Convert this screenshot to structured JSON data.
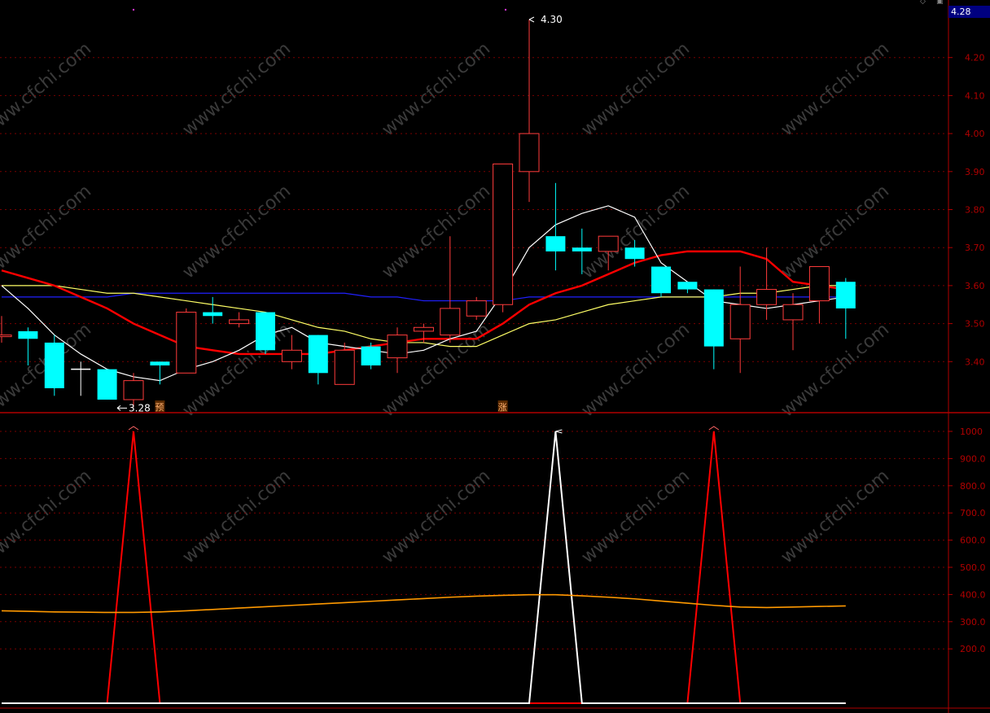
{
  "current_price_tag": "4.28",
  "colors": {
    "background": "#000000",
    "up": "#ff3b3b",
    "down": "#00ffff",
    "grid": "#7a0000",
    "axis": "#b00000",
    "ma_short": "#ffffff",
    "ma_mid": "#ff0000",
    "ma_long": "#ffff66",
    "ma_longest": "#2020ff",
    "indicator_avg": "#ff9900",
    "watermark": "#3a3a3a"
  },
  "watermark_text": "www.cfchi.com",
  "chart_data": [
    {
      "type": "candlestick",
      "panel": "price",
      "ylim": [
        3.27,
        4.33
      ],
      "y_ticks": [
        "4.20",
        "4.10",
        "4.00",
        "3.90",
        "3.80",
        "3.70",
        "3.60",
        "3.50",
        "3.40"
      ],
      "candles": [
        {
          "open": 3.47,
          "close": 3.47,
          "high": 3.52,
          "low": 3.45,
          "dir": "up"
        },
        {
          "open": 3.48,
          "close": 3.46,
          "high": 3.49,
          "low": 3.39,
          "dir": "down"
        },
        {
          "open": 3.45,
          "close": 3.33,
          "high": 3.47,
          "low": 3.31,
          "dir": "down"
        },
        {
          "open": 3.38,
          "close": 3.38,
          "high": 3.4,
          "low": 3.31,
          "dir": "doji"
        },
        {
          "open": 3.38,
          "close": 3.3,
          "high": 3.38,
          "low": 3.3,
          "dir": "down"
        },
        {
          "open": 3.3,
          "close": 3.35,
          "high": 3.37,
          "low": 3.28,
          "dir": "up"
        },
        {
          "open": 3.4,
          "close": 3.39,
          "high": 3.4,
          "low": 3.34,
          "dir": "down"
        },
        {
          "open": 3.37,
          "close": 3.53,
          "high": 3.54,
          "low": 3.37,
          "dir": "up"
        },
        {
          "open": 3.53,
          "close": 3.52,
          "high": 3.57,
          "low": 3.5,
          "dir": "down"
        },
        {
          "open": 3.5,
          "close": 3.51,
          "high": 3.53,
          "low": 3.49,
          "dir": "up"
        },
        {
          "open": 3.53,
          "close": 3.43,
          "high": 3.53,
          "low": 3.42,
          "dir": "down"
        },
        {
          "open": 3.4,
          "close": 3.43,
          "high": 3.47,
          "low": 3.38,
          "dir": "up"
        },
        {
          "open": 3.47,
          "close": 3.37,
          "high": 3.47,
          "low": 3.34,
          "dir": "down"
        },
        {
          "open": 3.34,
          "close": 3.43,
          "high": 3.45,
          "low": 3.34,
          "dir": "up"
        },
        {
          "open": 3.44,
          "close": 3.39,
          "high": 3.45,
          "low": 3.38,
          "dir": "down"
        },
        {
          "open": 3.41,
          "close": 3.47,
          "high": 3.49,
          "low": 3.37,
          "dir": "up"
        },
        {
          "open": 3.48,
          "close": 3.49,
          "high": 3.5,
          "low": 3.45,
          "dir": "up"
        },
        {
          "open": 3.47,
          "close": 3.54,
          "high": 3.73,
          "low": 3.45,
          "dir": "up"
        },
        {
          "open": 3.52,
          "close": 3.56,
          "high": 3.57,
          "low": 3.51,
          "dir": "up"
        },
        {
          "open": 3.55,
          "close": 3.92,
          "high": 3.92,
          "low": 3.53,
          "dir": "up"
        },
        {
          "open": 3.9,
          "close": 4.0,
          "high": 4.3,
          "low": 3.82,
          "dir": "up"
        },
        {
          "open": 3.73,
          "close": 3.69,
          "high": 3.87,
          "low": 3.64,
          "dir": "down"
        },
        {
          "open": 3.7,
          "close": 3.69,
          "high": 3.75,
          "low": 3.63,
          "dir": "down"
        },
        {
          "open": 3.69,
          "close": 3.73,
          "high": 3.73,
          "low": 3.64,
          "dir": "up"
        },
        {
          "open": 3.7,
          "close": 3.67,
          "high": 3.72,
          "low": 3.65,
          "dir": "down"
        },
        {
          "open": 3.65,
          "close": 3.58,
          "high": 3.65,
          "low": 3.57,
          "dir": "down"
        },
        {
          "open": 3.61,
          "close": 3.59,
          "high": 3.61,
          "low": 3.58,
          "dir": "down"
        },
        {
          "open": 3.59,
          "close": 3.44,
          "high": 3.59,
          "low": 3.38,
          "dir": "down"
        },
        {
          "open": 3.46,
          "close": 3.55,
          "high": 3.65,
          "low": 3.37,
          "dir": "up"
        },
        {
          "open": 3.55,
          "close": 3.59,
          "high": 3.7,
          "low": 3.51,
          "dir": "up"
        },
        {
          "open": 3.51,
          "close": 3.55,
          "high": 3.58,
          "low": 3.43,
          "dir": "up"
        },
        {
          "open": 3.56,
          "close": 3.65,
          "high": 3.65,
          "low": 3.5,
          "dir": "up"
        },
        {
          "open": 3.61,
          "close": 3.54,
          "high": 3.62,
          "low": 3.46,
          "dir": "down"
        }
      ],
      "ma_short": [
        3.6,
        3.54,
        3.47,
        3.42,
        3.38,
        3.36,
        3.35,
        3.38,
        3.4,
        3.43,
        3.47,
        3.49,
        3.45,
        3.44,
        3.43,
        3.42,
        3.43,
        3.46,
        3.48,
        3.58,
        3.7,
        3.76,
        3.79,
        3.81,
        3.78,
        3.66,
        3.61,
        3.56,
        3.55,
        3.54,
        3.55,
        3.56,
        3.57
      ],
      "ma_mid": [
        3.64,
        3.62,
        3.6,
        3.57,
        3.54,
        3.5,
        3.47,
        3.44,
        3.43,
        3.42,
        3.42,
        3.42,
        3.42,
        3.43,
        3.44,
        3.45,
        3.46,
        3.46,
        3.46,
        3.5,
        3.55,
        3.58,
        3.6,
        3.63,
        3.66,
        3.68,
        3.69,
        3.69,
        3.69,
        3.67,
        3.61,
        3.6,
        3.59
      ],
      "ma_long": [
        3.6,
        3.6,
        3.6,
        3.59,
        3.58,
        3.58,
        3.57,
        3.56,
        3.55,
        3.54,
        3.53,
        3.51,
        3.49,
        3.48,
        3.46,
        3.45,
        3.45,
        3.44,
        3.44,
        3.47,
        3.5,
        3.51,
        3.53,
        3.55,
        3.56,
        3.57,
        3.57,
        3.57,
        3.58,
        3.58,
        3.59,
        3.6,
        3.6
      ],
      "ma_longest": [
        3.57,
        3.57,
        3.57,
        3.57,
        3.57,
        3.58,
        3.58,
        3.58,
        3.58,
        3.58,
        3.58,
        3.58,
        3.58,
        3.58,
        3.57,
        3.57,
        3.56,
        3.56,
        3.56,
        3.56,
        3.57,
        3.57,
        3.57,
        3.57,
        3.57,
        3.57,
        3.57,
        3.57,
        3.57,
        3.57,
        3.57,
        3.57,
        3.57
      ],
      "annotations": [
        {
          "label": "4.30",
          "candle": 20,
          "kind": "high"
        },
        {
          "label": "3.28",
          "candle": 5,
          "kind": "low"
        },
        {
          "label": "预",
          "candle": 6,
          "kind": "marker"
        },
        {
          "label": "涨",
          "candle": 19,
          "kind": "marker"
        }
      ]
    },
    {
      "type": "line",
      "panel": "indicator",
      "ylim": [
        0,
        1040
      ],
      "y_ticks": [
        "1000",
        "900.0",
        "800.0",
        "700.0",
        "600.0",
        "500.0",
        "400.0",
        "300.0",
        "200.0"
      ],
      "series": [
        {
          "color": "#ff0000",
          "values": [
            0,
            0,
            0,
            0,
            0,
            1000,
            0,
            0,
            0,
            0,
            0,
            0,
            0,
            0,
            0,
            0,
            0,
            0,
            0,
            0,
            0,
            0,
            0,
            0,
            0,
            0,
            0,
            1000,
            0,
            0,
            0,
            0,
            0
          ]
        },
        {
          "color": "#ffffff",
          "values": [
            0,
            0,
            0,
            0,
            0,
            0,
            0,
            0,
            0,
            0,
            0,
            0,
            0,
            0,
            0,
            0,
            0,
            0,
            0,
            0,
            0,
            1000,
            0,
            0,
            0,
            0,
            0,
            0,
            0,
            0,
            0,
            0,
            0
          ]
        },
        {
          "color": "#ff9900",
          "values": [
            340,
            338,
            336,
            335,
            334,
            334,
            336,
            340,
            345,
            350,
            355,
            360,
            365,
            370,
            375,
            380,
            385,
            390,
            394,
            397,
            399,
            399,
            395,
            390,
            384,
            376,
            368,
            360,
            354,
            352,
            354,
            356,
            358
          ]
        }
      ]
    }
  ]
}
